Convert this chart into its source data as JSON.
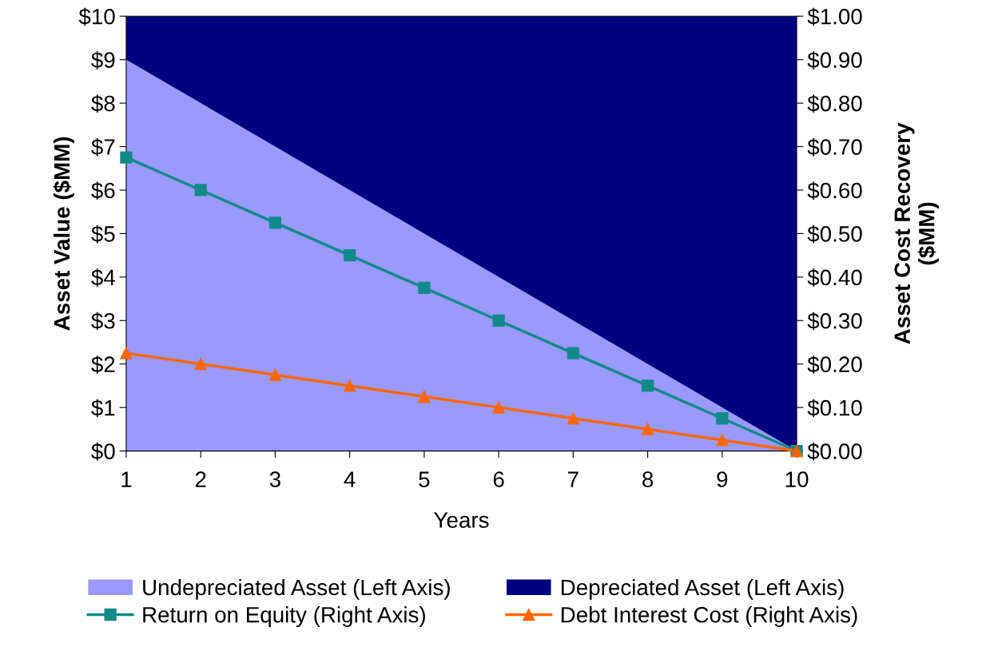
{
  "chart_data": {
    "type": "area",
    "xlabel": "Years",
    "ylabel": "Asset Value ($MM)",
    "y2label": "Asset Cost Recovery\n($MM)",
    "x": [
      1,
      2,
      3,
      4,
      5,
      6,
      7,
      8,
      9,
      10
    ],
    "stacked": true,
    "series": [
      {
        "name": "Undepreciated Asset (Left Axis)",
        "color": "#9999ff",
        "values": [
          9,
          8,
          7,
          6,
          5,
          4,
          3,
          2,
          1,
          0
        ]
      },
      {
        "name": "Depreciated Asset (Left Axis)",
        "color": "#000080",
        "values": [
          1,
          2,
          3,
          4,
          5,
          6,
          7,
          8,
          9,
          10
        ]
      },
      {
        "name": "Return on Equity (Right Axis)",
        "type": "line",
        "axis": "y2",
        "marker": "square",
        "color": "#138a8a",
        "values": [
          0.675,
          0.6,
          0.525,
          0.45,
          0.375,
          0.3,
          0.225,
          0.15,
          0.075,
          0
        ]
      },
      {
        "name": "Debt Interest Cost (Right Axis)",
        "type": "line",
        "axis": "y2",
        "marker": "triangle",
        "color": "#ff6600",
        "values": [
          0.225,
          0.2,
          0.175,
          0.15,
          0.125,
          0.1,
          0.075,
          0.05,
          0.025,
          0
        ]
      }
    ],
    "xlim": [
      1,
      10
    ],
    "xticks": [
      1,
      2,
      3,
      4,
      5,
      6,
      7,
      8,
      9,
      10
    ],
    "ylim": [
      0,
      10
    ],
    "yticks": [
      {
        "value": 0,
        "label": "$0"
      },
      {
        "value": 1,
        "label": "$1"
      },
      {
        "value": 2,
        "label": "$2"
      },
      {
        "value": 3,
        "label": "$3"
      },
      {
        "value": 4,
        "label": "$4"
      },
      {
        "value": 5,
        "label": "$5"
      },
      {
        "value": 6,
        "label": "$6"
      },
      {
        "value": 7,
        "label": "$7"
      },
      {
        "value": 8,
        "label": "$8"
      },
      {
        "value": 9,
        "label": "$9"
      },
      {
        "value": 10,
        "label": "$10"
      }
    ],
    "y2lim": [
      0,
      1
    ],
    "y2ticks": [
      {
        "value": 0,
        "label": "$0.00"
      },
      {
        "value": 0.1,
        "label": "$0.10"
      },
      {
        "value": 0.2,
        "label": "$0.20"
      },
      {
        "value": 0.3,
        "label": "$0.30"
      },
      {
        "value": 0.4,
        "label": "$0.40"
      },
      {
        "value": 0.5,
        "label": "$0.50"
      },
      {
        "value": 0.6,
        "label": "$0.60"
      },
      {
        "value": 0.7,
        "label": "$0.70"
      },
      {
        "value": 0.8,
        "label": "$0.80"
      },
      {
        "value": 0.9,
        "label": "$0.90"
      },
      {
        "value": 1,
        "label": "$1.00"
      }
    ],
    "grid": false,
    "legend": "bottom"
  }
}
